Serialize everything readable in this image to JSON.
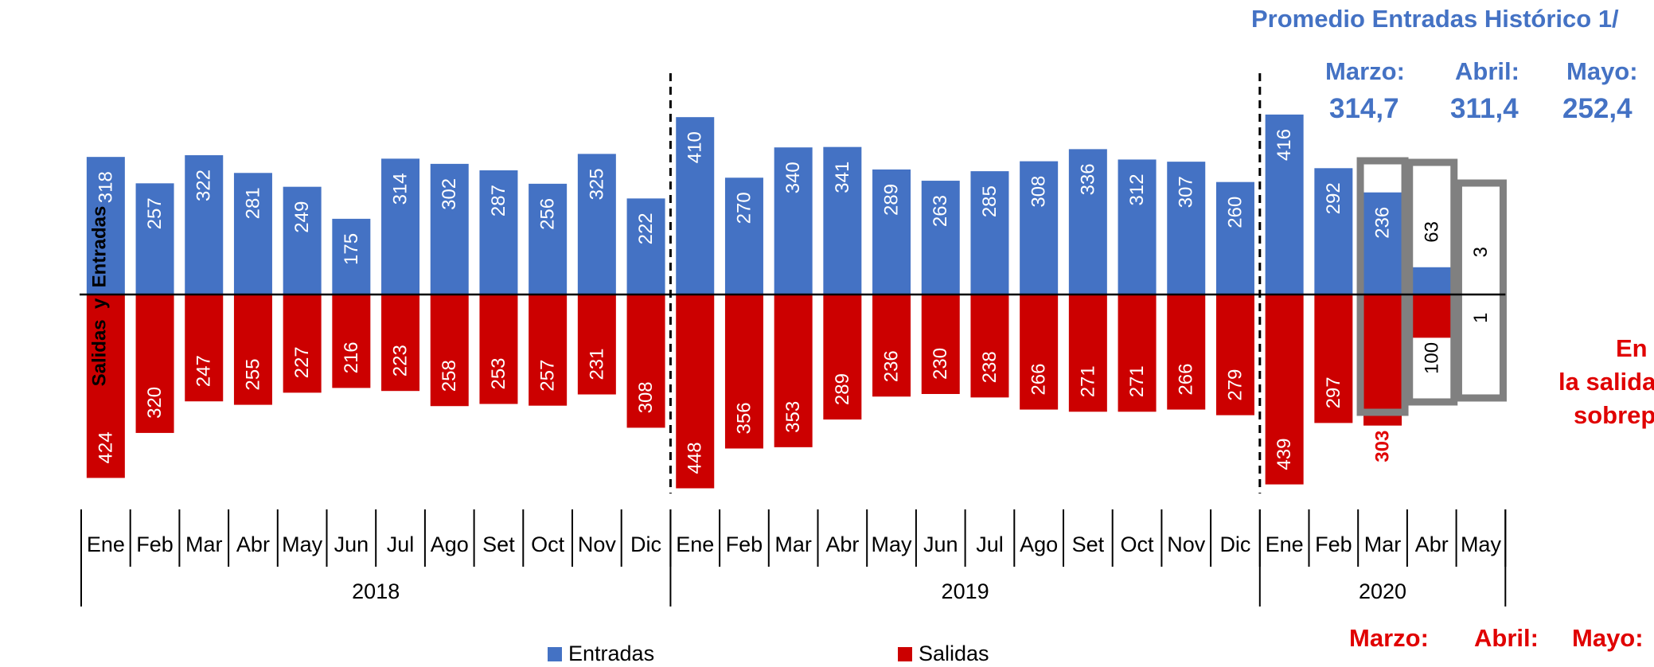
{
  "chart_data": {
    "type": "bar",
    "stacked_diverging": true,
    "ylabel": "Salidas  y  Entradas",
    "periods": [
      {
        "year": "2018",
        "months": [
          "Ene",
          "Feb",
          "Mar",
          "Abr",
          "May",
          "Jun",
          "Jul",
          "Ago",
          "Set",
          "Oct",
          "Nov",
          "Dic"
        ]
      },
      {
        "year": "2019",
        "months": [
          "Ene",
          "Feb",
          "Mar",
          "Abr",
          "May",
          "Jun",
          "Jul",
          "Ago",
          "Set",
          "Oct",
          "Nov",
          "Dic"
        ]
      },
      {
        "year": "2020",
        "months": [
          "Ene",
          "Feb",
          "Mar",
          "Abr",
          "May"
        ]
      }
    ],
    "series": [
      {
        "name": "Entradas",
        "color": "#4472C4",
        "values": [
          318,
          257,
          322,
          281,
          249,
          175,
          314,
          302,
          287,
          256,
          325,
          222,
          410,
          270,
          340,
          341,
          289,
          263,
          285,
          308,
          336,
          312,
          307,
          260,
          416,
          292,
          236,
          63,
          3
        ]
      },
      {
        "name": "Salidas",
        "color": "#CC0000",
        "values": [
          424,
          320,
          247,
          255,
          227,
          216,
          223,
          258,
          253,
          257,
          231,
          308,
          448,
          356,
          353,
          289,
          236,
          230,
          238,
          266,
          271,
          271,
          266,
          279,
          439,
          297,
          303,
          100,
          1
        ]
      }
    ],
    "highlighted_last": 3,
    "label_overrides": {
      "26": {
        "salidas_label_outside": true,
        "salidas_label_color": "#E00000"
      }
    },
    "legend_position": "bottom"
  },
  "annotations": {
    "header": "Promedio Entradas Histórico 1/",
    "entradas_avg": [
      {
        "label": "Marzo:",
        "value": "314,7"
      },
      {
        "label": "Abril:",
        "value": "311,4"
      },
      {
        "label": "Mayo:",
        "value": "252,4"
      }
    ],
    "right_text": [
      "En",
      "la salida",
      "sobrep"
    ],
    "salidas_avg_labels": [
      "Marzo:",
      "Abril:",
      "Mayo:"
    ]
  },
  "legend": {
    "entradas": "Entradas",
    "salidas": "Salidas"
  }
}
